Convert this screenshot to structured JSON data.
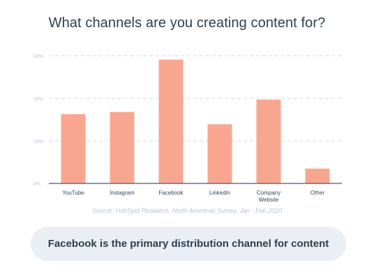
{
  "title": "What channels are you creating content for?",
  "source": "Source: HubSpot Research, North American Survey, Jan - Feb 2020",
  "takeaway": "Facebook is the primary distribution channel for content",
  "colors": {
    "bar": "#f9a690",
    "gridline": "#cfd8e2",
    "axis": "#425b76",
    "tick_text": "#33475b",
    "y_tick_text": "#b7c3d2"
  },
  "chart_data": {
    "type": "bar",
    "categories": [
      "YouTube",
      "Instagram",
      "Facebook",
      "LinkedIn",
      "Company Website",
      "Other"
    ],
    "values": [
      16.3,
      16.8,
      29.1,
      13.9,
      19.7,
      3.5
    ],
    "yticks": [
      "0%",
      "10%",
      "20%",
      "30%"
    ],
    "ylim": [
      0,
      30
    ],
    "ylabel": "",
    "xlabel": "",
    "grid": true,
    "unit": "%"
  }
}
